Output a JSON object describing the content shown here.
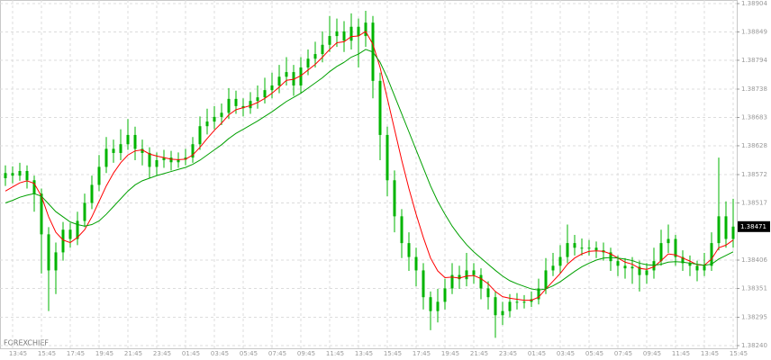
{
  "chart_data": {
    "type": "candlestick",
    "watermark": "FOREXCHIEF",
    "categories": [
      null,
      "13:45",
      null,
      null,
      null,
      "15:45",
      null,
      null,
      null,
      "17:45",
      null,
      null,
      null,
      "19:45",
      null,
      null,
      null,
      "21:45",
      null,
      null,
      null,
      "23:45",
      null,
      null,
      null,
      "01:45",
      null,
      null,
      null,
      "03:45",
      null,
      null,
      null,
      "05:45",
      null,
      null,
      null,
      "07:45",
      null,
      null,
      null,
      "09:45",
      null,
      null,
      null,
      "11:45",
      null,
      null,
      null,
      "13:45",
      null,
      null,
      null,
      "15:45",
      null,
      null,
      null,
      "17:45",
      null,
      null,
      null,
      "19:45",
      null,
      null,
      null,
      "21:45",
      null,
      null,
      null,
      "23:45",
      null,
      null,
      null,
      "01:45",
      null,
      null,
      null,
      "03:45",
      null,
      null,
      null,
      "05:45",
      null,
      null,
      null,
      "07:45",
      null,
      null,
      null,
      "09:45",
      null,
      null,
      null,
      "11:45",
      null,
      null,
      null,
      "13:45",
      null,
      null,
      null,
      "15:45"
    ],
    "open": [
      1.38565,
      1.38575,
      1.3857,
      1.38579,
      1.38561,
      1.38535,
      1.38456,
      1.38386,
      1.38421,
      1.38465,
      1.38447,
      1.38482,
      1.38517,
      1.38552,
      1.38587,
      1.38622,
      1.38614,
      1.38631,
      1.38649,
      1.38622,
      1.38614,
      1.38587,
      1.386,
      1.38605,
      1.38596,
      1.38601,
      1.38605,
      1.38631,
      1.38666,
      1.38675,
      1.38684,
      1.38692,
      1.38719,
      1.38705,
      1.38701,
      1.38715,
      1.38722,
      1.38736,
      1.38745,
      1.38762,
      1.38771,
      1.38745,
      1.3878,
      1.38797,
      1.38806,
      1.38824,
      1.38841,
      1.3885,
      1.38832,
      1.38859,
      1.38841,
      1.38867,
      1.38754,
      1.38649,
      1.38561,
      1.38491,
      1.38439,
      1.38412,
      1.38386,
      1.38334,
      1.38307,
      1.38325,
      1.38351,
      1.38377,
      1.38369,
      1.38386,
      1.38377,
      1.38351,
      1.38334,
      1.38299,
      1.38307,
      1.38325,
      1.38325,
      1.38325,
      1.3833,
      1.38351,
      1.38386,
      1.38395,
      1.38412,
      1.38439,
      1.3843,
      1.3843,
      1.3843,
      1.38425,
      1.38421,
      1.38404,
      1.38395,
      1.3839,
      1.38393,
      1.38377,
      1.38386,
      1.38404,
      1.38439,
      1.38447,
      1.38412,
      1.384,
      1.38395,
      1.38386,
      1.38395,
      1.38439,
      1.38491,
      1.38447
    ],
    "high": [
      1.3859,
      1.38588,
      1.38595,
      1.3859,
      1.3857,
      1.38545,
      1.3847,
      1.3844,
      1.3848,
      1.38478,
      1.385,
      1.38535,
      1.3857,
      1.3861,
      1.38645,
      1.3864,
      1.3866,
      1.3868,
      1.38665,
      1.3864,
      1.38625,
      1.38615,
      1.3862,
      1.38618,
      1.38615,
      1.38622,
      1.38645,
      1.38685,
      1.387,
      1.38705,
      1.3871,
      1.3874,
      1.38735,
      1.3872,
      1.38732,
      1.38745,
      1.3876,
      1.3877,
      1.38785,
      1.388,
      1.38785,
      1.388,
      1.38815,
      1.3883,
      1.3885,
      1.3888,
      1.38875,
      1.3887,
      1.38885,
      1.38875,
      1.3889,
      1.3888,
      1.3877,
      1.38665,
      1.3858,
      1.38505,
      1.3846,
      1.3843,
      1.384,
      1.38345,
      1.3835,
      1.3837,
      1.384,
      1.38395,
      1.3842,
      1.384,
      1.3839,
      1.38365,
      1.38345,
      1.38325,
      1.3834,
      1.38342,
      1.38338,
      1.38345,
      1.3837,
      1.3841,
      1.3842,
      1.38435,
      1.38475,
      1.38455,
      1.38448,
      1.38445,
      1.38442,
      1.3844,
      1.3843,
      1.38415,
      1.3841,
      1.38412,
      1.38405,
      1.384,
      1.3843,
      1.38465,
      1.38475,
      1.38455,
      1.38425,
      1.38415,
      1.38405,
      1.3842,
      1.3846,
      1.38605,
      1.3852,
      1.38525
    ],
    "low": [
      1.3855,
      1.38555,
      1.3856,
      1.38545,
      1.385,
      1.3838,
      1.38307,
      1.3834,
      1.38405,
      1.3843,
      1.38435,
      1.3847,
      1.38505,
      1.3854,
      1.38575,
      1.38595,
      1.386,
      1.3862,
      1.386,
      1.3859,
      1.38565,
      1.3857,
      1.38585,
      1.3858,
      1.38585,
      1.3859,
      1.38595,
      1.3862,
      1.3865,
      1.3866,
      1.38668,
      1.3868,
      1.3869,
      1.38685,
      1.3869,
      1.387,
      1.3871,
      1.3872,
      1.3873,
      1.38745,
      1.38725,
      1.3873,
      1.38765,
      1.3878,
      1.3879,
      1.3881,
      1.3882,
      1.3881,
      1.38815,
      1.3878,
      1.3882,
      1.3872,
      1.386,
      1.3853,
      1.3846,
      1.3841,
      1.38385,
      1.38355,
      1.3831,
      1.3827,
      1.38285,
      1.3831,
      1.3834,
      1.3835,
      1.38355,
      1.3836,
      1.3833,
      1.3831,
      1.38255,
      1.3828,
      1.38295,
      1.3831,
      1.38312,
      1.38315,
      1.3832,
      1.3834,
      1.38375,
      1.3838,
      1.384,
      1.38415,
      1.38415,
      1.38415,
      1.3841,
      1.38405,
      1.38385,
      1.38375,
      1.3837,
      1.3836,
      1.38345,
      1.3836,
      1.3837,
      1.38395,
      1.3842,
      1.38395,
      1.38385,
      1.38375,
      1.38365,
      1.38375,
      1.38385,
      1.38425,
      1.3843,
      1.3843
    ],
    "close": [
      1.38575,
      1.3857,
      1.38579,
      1.38561,
      1.38535,
      1.38456,
      1.38386,
      1.38421,
      1.38465,
      1.38447,
      1.38482,
      1.38517,
      1.38552,
      1.38587,
      1.38622,
      1.38614,
      1.38631,
      1.38649,
      1.38622,
      1.38614,
      1.38587,
      1.386,
      1.38605,
      1.38596,
      1.38601,
      1.38605,
      1.38631,
      1.38666,
      1.38675,
      1.38684,
      1.38692,
      1.38719,
      1.38705,
      1.38701,
      1.38715,
      1.38722,
      1.38736,
      1.38745,
      1.38762,
      1.38771,
      1.38745,
      1.3878,
      1.38797,
      1.38806,
      1.38824,
      1.38841,
      1.3885,
      1.38832,
      1.38859,
      1.38841,
      1.38867,
      1.38754,
      1.38649,
      1.38561,
      1.38491,
      1.38439,
      1.38412,
      1.38386,
      1.38334,
      1.38307,
      1.38325,
      1.38351,
      1.38377,
      1.38369,
      1.38386,
      1.38377,
      1.38351,
      1.38334,
      1.38299,
      1.38307,
      1.38325,
      1.38325,
      1.38325,
      1.3833,
      1.38351,
      1.38386,
      1.38395,
      1.38412,
      1.38439,
      1.3843,
      1.3843,
      1.3843,
      1.38425,
      1.38421,
      1.38404,
      1.38395,
      1.3839,
      1.38393,
      1.38377,
      1.38386,
      1.38404,
      1.38439,
      1.38447,
      1.38412,
      1.384,
      1.38395,
      1.38386,
      1.38395,
      1.38439,
      1.38491,
      1.38447,
      1.38471
    ],
    "color": "#00b400",
    "series": [
      {
        "color": "#ff0000",
        "values": [
          1.3854,
          1.38548,
          1.38556,
          1.3856,
          1.38555,
          1.3853,
          1.3849,
          1.3846,
          1.38445,
          1.3844,
          1.3845,
          1.38465,
          1.3849,
          1.3852,
          1.3855,
          1.38575,
          1.38595,
          1.3861,
          1.38618,
          1.3862,
          1.38612,
          1.38608,
          1.38605,
          1.38602,
          1.38601,
          1.38602,
          1.3861,
          1.38625,
          1.38642,
          1.38658,
          1.38672,
          1.38688,
          1.38698,
          1.38702,
          1.38706,
          1.38712,
          1.3872,
          1.3873,
          1.38742,
          1.38755,
          1.38757,
          1.38764,
          1.38775,
          1.38786,
          1.388,
          1.38815,
          1.38828,
          1.3883,
          1.3884,
          1.38841,
          1.3885,
          1.38825,
          1.3878,
          1.3872,
          1.3866,
          1.386,
          1.38545,
          1.38495,
          1.3845,
          1.3841,
          1.38385,
          1.38372,
          1.38373,
          1.38371,
          1.38375,
          1.38376,
          1.3837,
          1.3836,
          1.38345,
          1.38335,
          1.38332,
          1.3833,
          1.38328,
          1.38328,
          1.38334,
          1.3835,
          1.38365,
          1.3838,
          1.38398,
          1.3841,
          1.38418,
          1.38423,
          1.38424,
          1.38423,
          1.38418,
          1.3841,
          1.38402,
          1.38398,
          1.3839,
          1.38388,
          1.38393,
          1.38405,
          1.38418,
          1.38416,
          1.3841,
          1.38404,
          1.38397,
          1.38396,
          1.38408,
          1.3843,
          1.38435,
          1.38445
        ]
      },
      {
        "color": "#00a000",
        "values": [
          1.38517,
          1.38522,
          1.38528,
          1.38532,
          1.38535,
          1.3853,
          1.38515,
          1.385,
          1.3849,
          1.3848,
          1.38475,
          1.38472,
          1.38475,
          1.38482,
          1.38495,
          1.3851,
          1.38525,
          1.3854,
          1.38552,
          1.3856,
          1.38565,
          1.3857,
          1.38574,
          1.38578,
          1.38582,
          1.38586,
          1.38592,
          1.386,
          1.3861,
          1.3862,
          1.3863,
          1.38642,
          1.38652,
          1.3866,
          1.38668,
          1.38676,
          1.38685,
          1.38694,
          1.38704,
          1.38714,
          1.38722,
          1.3873,
          1.3874,
          1.3875,
          1.3876,
          1.38772,
          1.38782,
          1.3879,
          1.388,
          1.38806,
          1.38815,
          1.3881,
          1.3879,
          1.3876,
          1.38725,
          1.3869,
          1.38655,
          1.3862,
          1.38585,
          1.3855,
          1.3852,
          1.38495,
          1.38472,
          1.38453,
          1.38436,
          1.38422,
          1.3841,
          1.38398,
          1.38386,
          1.38375,
          1.38366,
          1.3836,
          1.38355,
          1.3835,
          1.38348,
          1.3835,
          1.38356,
          1.38364,
          1.38374,
          1.38384,
          1.38393,
          1.384,
          1.38406,
          1.3841,
          1.38411,
          1.3841,
          1.38408,
          1.38405,
          1.384,
          1.38397,
          1.38396,
          1.38398,
          1.38402,
          1.38403,
          1.38402,
          1.384,
          1.38398,
          1.38396,
          1.38398,
          1.38408,
          1.38415,
          1.38422
        ]
      }
    ],
    "ylim": [
      1.38233,
      1.38911
    ],
    "yticks": [
      1.38904,
      1.38849,
      1.38794,
      1.38738,
      1.38683,
      1.38628,
      1.38572,
      1.38517,
      1.38406,
      1.38351,
      1.38295,
      {
        "value": 1.3824,
        "label": "1.38240"
      }
    ],
    "grid": true
  }
}
